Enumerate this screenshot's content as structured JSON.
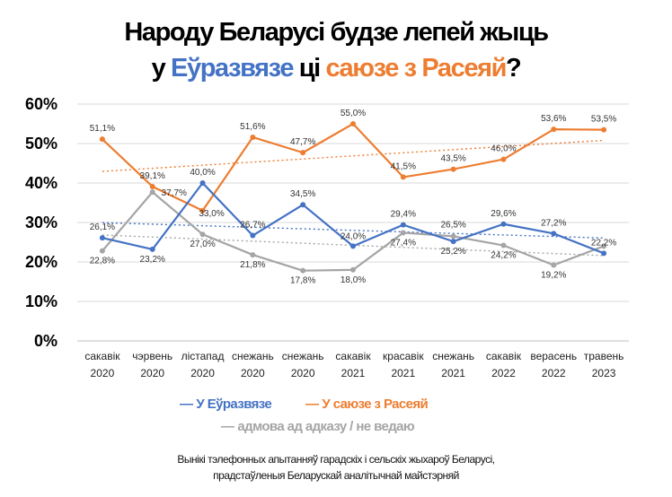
{
  "title": {
    "line1": "Народу Беларусі будзе лепей жыць",
    "line2_prefix": "у ",
    "line2_a": "Еўразвязе",
    "line2_mid": " ці ",
    "line2_b": "саюзе з Расеяй",
    "line2_suffix": "?"
  },
  "colors": {
    "blue": "#4472c4",
    "orange": "#ed7d31",
    "gray": "#a5a5a5"
  },
  "legend": {
    "a": "У Еўразвязе",
    "b": "У саюзе з Расеяй",
    "c": "адмова ад адказу / не ведаю",
    "dash": "—"
  },
  "source": {
    "line1": "Вынікі тэлефонных апытанняў гарадскіх і сельскіх жыхароў Беларусі,",
    "line2": "прадстаўленыя Беларускай аналітычнай майстэрняй"
  },
  "chart_data": {
    "type": "line",
    "categories": [
      [
        "сакавік",
        "2020"
      ],
      [
        "чэрвень",
        "2020"
      ],
      [
        "лістапад",
        "2020"
      ],
      [
        "снежань",
        "2020"
      ],
      [
        "снежань",
        "2020"
      ],
      [
        "сакавік",
        "2021"
      ],
      [
        "красавік",
        "2021"
      ],
      [
        "снежань",
        "2021"
      ],
      [
        "сакавік",
        "2022"
      ],
      [
        "верасень",
        "2022"
      ],
      [
        "травень",
        "2023"
      ]
    ],
    "y_ticks": [
      "0%",
      "10%",
      "20%",
      "30%",
      "40%",
      "50%",
      "60%"
    ],
    "ylim": [
      0,
      60
    ],
    "grid": true,
    "trendlines": true,
    "series": [
      {
        "name": "У Еўразвязе",
        "color": "#4472c4",
        "values": [
          26.1,
          23.2,
          40.0,
          26.7,
          34.5,
          24.0,
          29.4,
          25.2,
          29.6,
          27.2,
          22.2
        ],
        "labels": [
          "26,1%",
          "23,2%",
          "40,0%",
          "26,7%",
          "34,5%",
          "24,0%",
          "29,4%",
          "25,2%",
          "29,6%",
          "27,2%",
          "22,2%"
        ]
      },
      {
        "name": "У саюзе з Расеяй",
        "color": "#ed7d31",
        "values": [
          51.1,
          39.1,
          33.0,
          51.6,
          47.7,
          55.0,
          41.5,
          43.5,
          46.0,
          53.6,
          53.5
        ],
        "labels": [
          "51,1%",
          "39,1%",
          "33,0%",
          "51,6%",
          "47,7%",
          "55,0%",
          "41,5%",
          "43,5%",
          "46,0%",
          "53,6%",
          "53,5%"
        ]
      },
      {
        "name": "адмова ад адказу / не ведаю",
        "color": "#a5a5a5",
        "values": [
          22.8,
          37.7,
          27.0,
          21.8,
          17.8,
          18.0,
          27.4,
          26.5,
          24.2,
          19.2,
          24.0
        ],
        "labels": [
          "22,8%",
          "37,7%",
          "27,0%",
          "21,8%",
          "17,8%",
          "18,0%",
          "27,4%",
          "26,5%",
          "24,2%",
          "19,2%",
          ""
        ]
      }
    ]
  }
}
